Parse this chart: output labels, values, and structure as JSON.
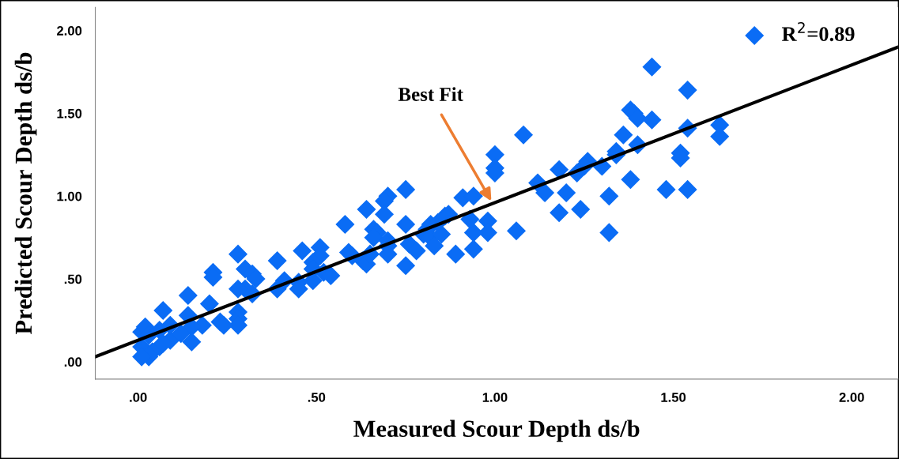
{
  "chart_data": {
    "type": "scatter",
    "xlabel": "Measured Scour Depth ds/b",
    "ylabel": "Predicted Scour Depth ds/b",
    "xlim": [
      -0.12,
      2.13
    ],
    "ylim": [
      -0.105,
      2.14
    ],
    "xticks": [
      {
        "value": 0,
        "label": ".00"
      },
      {
        "value": 0.5,
        "label": ".50"
      },
      {
        "value": 1,
        "label": "1.00"
      },
      {
        "value": 1.5,
        "label": "1.50"
      },
      {
        "value": 2,
        "label": "2.00"
      }
    ],
    "yticks": [
      {
        "value": 0,
        "label": ".00"
      },
      {
        "value": 0.5,
        "label": ".50"
      },
      {
        "value": 1,
        "label": "1.00"
      },
      {
        "value": 1.5,
        "label": "1.50"
      },
      {
        "value": 2,
        "label": "2.00"
      }
    ],
    "grid": false,
    "legend": "top right",
    "marker": "diamond",
    "annotations": [
      {
        "text": "Best Fit",
        "x": 0.99,
        "y": 0.97
      }
    ],
    "series": [
      {
        "name": "R$^{2}$=0.89",
        "color": "#0a6cf5",
        "x": [
          1.44,
          1.54,
          1.38,
          1.39,
          1.4,
          1.44,
          1.54,
          1.63,
          1.63,
          1.08,
          1.0,
          1.36,
          1.4,
          1.34,
          1.34,
          1.52,
          1.52,
          1.26,
          1.25,
          1.3,
          1.18,
          1.0,
          1.0,
          1.12,
          1.14,
          1.23,
          1.38,
          1.2,
          1.32,
          1.48,
          1.54,
          1.18,
          1.24,
          1.32,
          1.06,
          0.98,
          0.98,
          0.94,
          0.94,
          0.89,
          0.93,
          0.91,
          0.94,
          0.75,
          0.7,
          0.69,
          0.64,
          0.58,
          0.69,
          0.75,
          0.66,
          0.67,
          0.66,
          0.7,
          0.7,
          0.7,
          0.75,
          0.76,
          0.78,
          0.8,
          0.81,
          0.82,
          0.84,
          0.86,
          0.87,
          0.82,
          0.83,
          0.85,
          0.59,
          0.6,
          0.63,
          0.64,
          0.65,
          0.51,
          0.46,
          0.51,
          0.49,
          0.49,
          0.52,
          0.49,
          0.54,
          0.45,
          0.45,
          0.39,
          0.41,
          0.39,
          0.28,
          0.3,
          0.32,
          0.33,
          0.3,
          0.32,
          0.28,
          0.21,
          0.21,
          0.2,
          0.28,
          0.28,
          0.28,
          0.23,
          0.24,
          0.18,
          0.14,
          0.14,
          0.15,
          0.15,
          0.07,
          0.01,
          0.02,
          0.03,
          0.06,
          0.09,
          0.12,
          0.01,
          0.03,
          0.04,
          0.01,
          0.06,
          0.07,
          0.09
        ],
        "values": [
          1.78,
          1.64,
          1.52,
          1.5,
          1.47,
          1.46,
          1.41,
          1.43,
          1.36,
          1.37,
          1.25,
          1.37,
          1.31,
          1.27,
          1.25,
          1.26,
          1.23,
          1.21,
          1.18,
          1.18,
          1.16,
          1.17,
          1.14,
          1.08,
          1.02,
          1.14,
          1.1,
          1.02,
          1.0,
          1.04,
          1.04,
          0.9,
          0.92,
          0.78,
          0.79,
          0.85,
          0.78,
          0.78,
          0.68,
          0.65,
          0.86,
          0.99,
          1.0,
          1.04,
          1.0,
          0.97,
          0.92,
          0.83,
          0.89,
          0.83,
          0.8,
          0.78,
          0.75,
          0.73,
          0.7,
          0.65,
          0.58,
          0.71,
          0.67,
          0.77,
          0.8,
          0.83,
          0.84,
          0.88,
          0.89,
          0.75,
          0.7,
          0.77,
          0.66,
          0.64,
          0.61,
          0.59,
          0.65,
          0.69,
          0.67,
          0.64,
          0.6,
          0.56,
          0.54,
          0.49,
          0.52,
          0.48,
          0.44,
          0.61,
          0.49,
          0.44,
          0.65,
          0.56,
          0.53,
          0.5,
          0.44,
          0.41,
          0.44,
          0.54,
          0.51,
          0.35,
          0.3,
          0.26,
          0.22,
          0.24,
          0.22,
          0.22,
          0.4,
          0.28,
          0.21,
          0.12,
          0.31,
          0.18,
          0.21,
          0.16,
          0.19,
          0.13,
          0.17,
          0.09,
          0.03,
          0.06,
          0.03,
          0.09,
          0.11,
          0.22
        ]
      },
      {
        "color": "#000000",
        "type": "line",
        "marker": "none",
        "line_style": "solid",
        "x": [
          -0.12,
          2.13
        ],
        "values": [
          0.03,
          1.9
        ]
      }
    ]
  }
}
